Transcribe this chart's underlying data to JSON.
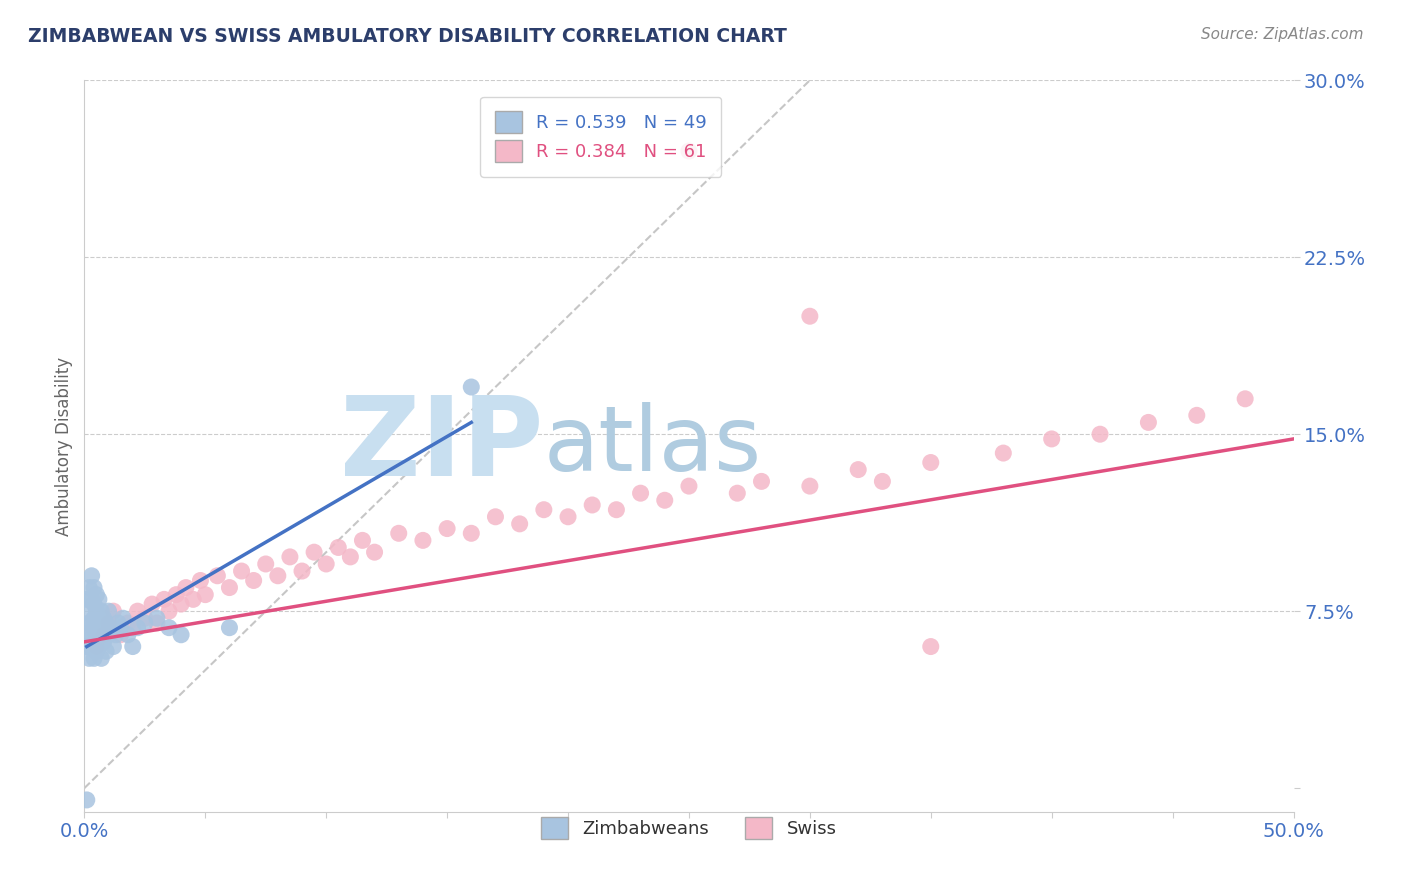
{
  "title": "ZIMBABWEAN VS SWISS AMBULATORY DISABILITY CORRELATION CHART",
  "source": "Source: ZipAtlas.com",
  "ylabel": "Ambulatory Disability",
  "xlim": [
    0.0,
    0.5
  ],
  "ylim": [
    -0.01,
    0.3
  ],
  "yticks": [
    0.0,
    0.075,
    0.15,
    0.225,
    0.3
  ],
  "ytick_labels": [
    "",
    "7.5%",
    "15.0%",
    "22.5%",
    "30.0%"
  ],
  "xticks": [
    0.0,
    0.05,
    0.1,
    0.15,
    0.2,
    0.25,
    0.3,
    0.35,
    0.4,
    0.45,
    0.5
  ],
  "xtick_labels": [
    "0.0%",
    "",
    "",
    "",
    "",
    "",
    "",
    "",
    "",
    "",
    "50.0%"
  ],
  "zimbabwe_R": 0.539,
  "zimbabwe_N": 49,
  "swiss_R": 0.384,
  "swiss_N": 61,
  "scatter_zimbabwe_color": "#a8c4e0",
  "scatter_swiss_color": "#f4b8c8",
  "line_zimbabwe_color": "#4472c4",
  "line_swiss_color": "#e05080",
  "ref_line_color": "#b8b8b8",
  "watermark_zip_color": "#c8dff0",
  "watermark_atlas_color": "#b0cce0",
  "background_color": "#ffffff",
  "title_color": "#2c3e6b",
  "source_color": "#888888",
  "axis_label_color": "#666666",
  "tick_label_color": "#4472c4",
  "zimbabwe_scatter_x": [
    0.001,
    0.001,
    0.001,
    0.002,
    0.002,
    0.002,
    0.002,
    0.003,
    0.003,
    0.003,
    0.003,
    0.003,
    0.004,
    0.004,
    0.004,
    0.004,
    0.004,
    0.005,
    0.005,
    0.005,
    0.005,
    0.006,
    0.006,
    0.006,
    0.007,
    0.007,
    0.007,
    0.008,
    0.008,
    0.009,
    0.009,
    0.01,
    0.01,
    0.011,
    0.012,
    0.013,
    0.014,
    0.015,
    0.016,
    0.018,
    0.02,
    0.022,
    0.025,
    0.03,
    0.035,
    0.04,
    0.06,
    0.16,
    0.001
  ],
  "zimbabwe_scatter_y": [
    0.06,
    0.075,
    0.08,
    0.055,
    0.065,
    0.07,
    0.085,
    0.06,
    0.07,
    0.08,
    0.09,
    0.065,
    0.055,
    0.068,
    0.072,
    0.078,
    0.085,
    0.058,
    0.065,
    0.075,
    0.082,
    0.06,
    0.07,
    0.08,
    0.055,
    0.068,
    0.075,
    0.062,
    0.072,
    0.058,
    0.07,
    0.065,
    0.075,
    0.068,
    0.06,
    0.065,
    0.07,
    0.068,
    0.072,
    0.065,
    0.06,
    0.068,
    0.07,
    0.072,
    0.068,
    0.065,
    0.068,
    0.17,
    -0.005
  ],
  "swiss_scatter_x": [
    0.005,
    0.008,
    0.01,
    0.012,
    0.015,
    0.018,
    0.02,
    0.022,
    0.025,
    0.028,
    0.03,
    0.033,
    0.035,
    0.038,
    0.04,
    0.042,
    0.045,
    0.048,
    0.05,
    0.055,
    0.06,
    0.065,
    0.07,
    0.075,
    0.08,
    0.085,
    0.09,
    0.095,
    0.1,
    0.105,
    0.11,
    0.115,
    0.12,
    0.13,
    0.14,
    0.15,
    0.16,
    0.17,
    0.18,
    0.19,
    0.2,
    0.21,
    0.22,
    0.23,
    0.24,
    0.25,
    0.27,
    0.28,
    0.3,
    0.32,
    0.33,
    0.35,
    0.38,
    0.4,
    0.42,
    0.44,
    0.46,
    0.48,
    0.25,
    0.3,
    0.35
  ],
  "swiss_scatter_y": [
    0.06,
    0.065,
    0.07,
    0.075,
    0.065,
    0.07,
    0.068,
    0.075,
    0.072,
    0.078,
    0.07,
    0.08,
    0.075,
    0.082,
    0.078,
    0.085,
    0.08,
    0.088,
    0.082,
    0.09,
    0.085,
    0.092,
    0.088,
    0.095,
    0.09,
    0.098,
    0.092,
    0.1,
    0.095,
    0.102,
    0.098,
    0.105,
    0.1,
    0.108,
    0.105,
    0.11,
    0.108,
    0.115,
    0.112,
    0.118,
    0.115,
    0.12,
    0.118,
    0.125,
    0.122,
    0.128,
    0.125,
    0.13,
    0.128,
    0.135,
    0.13,
    0.138,
    0.142,
    0.148,
    0.15,
    0.155,
    0.158,
    0.165,
    0.27,
    0.2,
    0.06
  ],
  "zimbabwe_line_x": [
    0.001,
    0.16
  ],
  "zimbabwe_line_y": [
    0.06,
    0.155
  ],
  "swiss_line_x": [
    0.0,
    0.5
  ],
  "swiss_line_y": [
    0.062,
    0.148
  ]
}
